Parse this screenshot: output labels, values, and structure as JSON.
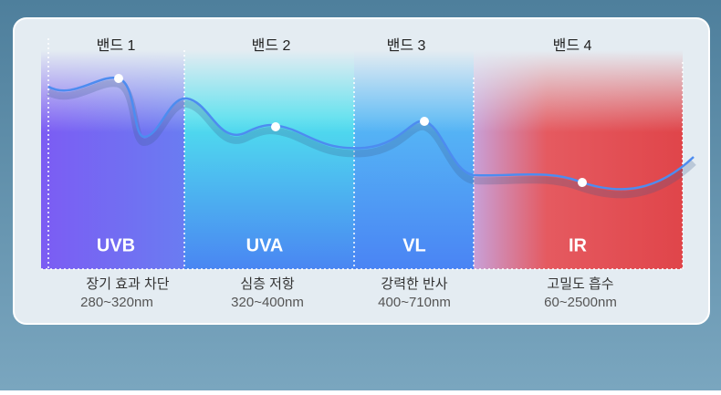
{
  "bands": [
    {
      "label": "밴드 1",
      "name": "UVB",
      "description": "장기 효과 차단",
      "range": "280~320nm"
    },
    {
      "label": "밴드 2",
      "name": "UVA",
      "description": "심층 저항",
      "range": "320~400nm"
    },
    {
      "label": "밴드 3",
      "name": "VL",
      "description": "강력한 반사",
      "range": "400~710nm"
    },
    {
      "label": "밴드 4",
      "name": "IR",
      "description": "고밀도 흡수",
      "range": "60~2500nm"
    }
  ]
}
